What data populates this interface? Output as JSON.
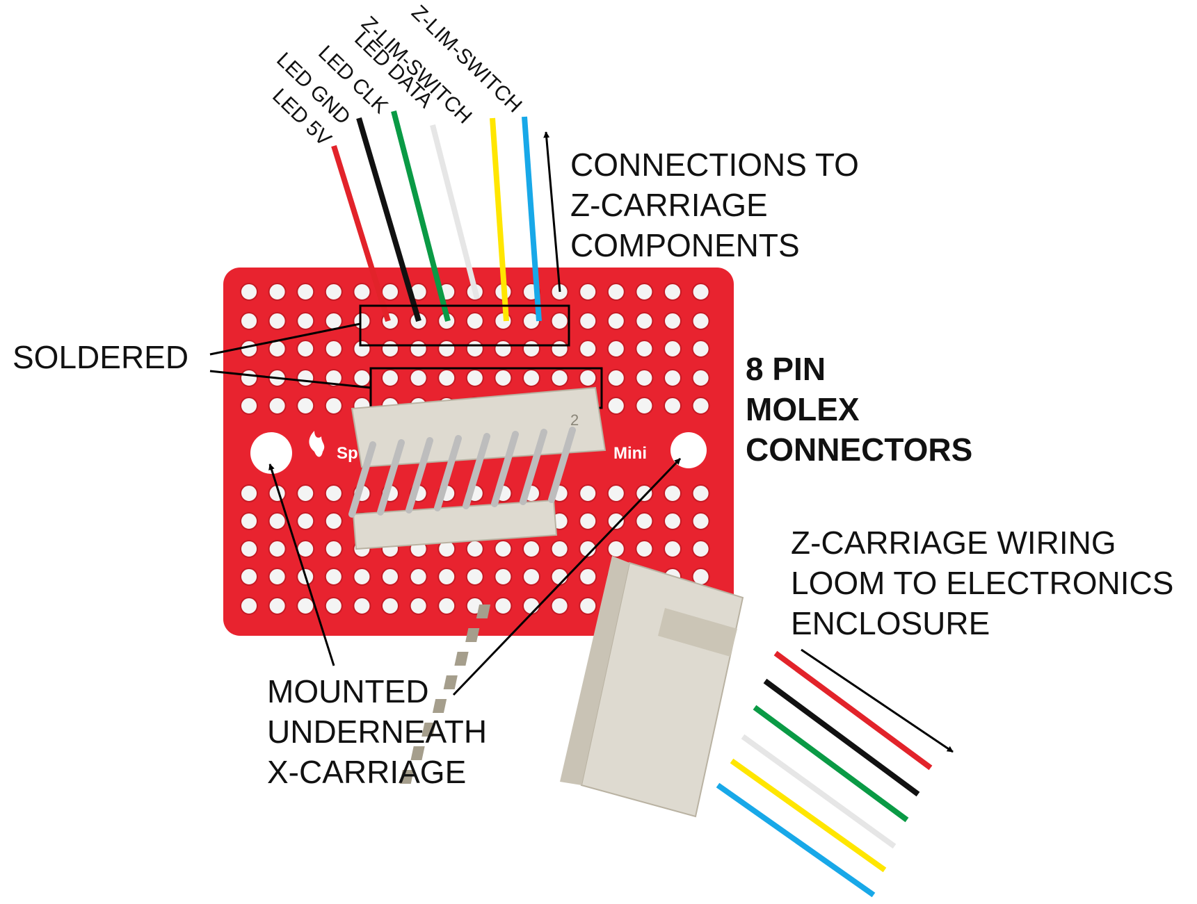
{
  "colors": {
    "board": "#e8232f",
    "board_hole": "#f4f4f4",
    "connector_body": "#dedad0",
    "connector_shade": "#c9c3b5",
    "pin": "#bdbdbd",
    "wire_red": "#e2232a",
    "wire_black": "#111111",
    "wire_green": "#0a9a45",
    "wire_white": "#e6e6e6",
    "wire_yellow": "#ffe600",
    "wire_blue": "#18a8e8"
  },
  "board": {
    "silkscreen_left": "Sp",
    "silkscreen_right": "Mini",
    "header_marking": "2"
  },
  "wire_labels": [
    "LED 5V",
    "LED GND",
    "LED CLK",
    "LED DATA",
    "Z-LIM-SWITCH",
    "Z-LIM-SWITCH"
  ],
  "annotations": {
    "connections": [
      "CONNECTIONS TO",
      "Z-CARRIAGE",
      "COMPONENTS"
    ],
    "soldered": "SOLDERED",
    "molex": [
      "8 PIN",
      "MOLEX",
      "CONNECTORS"
    ],
    "mounted": [
      "MOUNTED",
      "UNDERNEATH",
      "X-CARRIAGE"
    ],
    "loom": [
      "Z-CARRIAGE WIRING",
      "LOOM TO ELECTRONICS",
      "ENCLOSURE"
    ]
  }
}
